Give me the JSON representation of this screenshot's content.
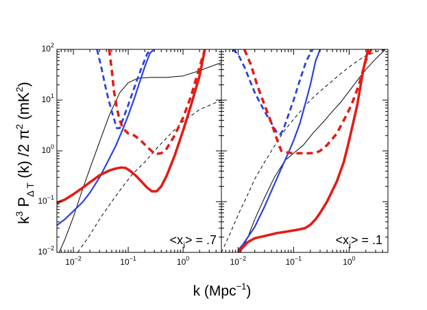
{
  "figure": {
    "ylabel": {
      "base": "k",
      "sup1": "3",
      "mid": " P",
      "sub1": "Δ T",
      "mid2": " (k) /2 π",
      "sup2": "2",
      "unit": "  (mK",
      "sup3": "2",
      "close": ")"
    },
    "xlabel": {
      "base": "k (Mpc",
      "sup": "−1",
      "close": ")"
    }
  },
  "chart_data": [
    {
      "type": "line",
      "panel": "left",
      "annotation": {
        "pre": "<x",
        "sub": "i",
        "post": "> = .7"
      },
      "xscale": "log",
      "yscale": "log",
      "xlim": [
        0.005,
        5
      ],
      "ylim": [
        0.01,
        100
      ],
      "xticks": [
        {
          "base": "10",
          "exp": "−2",
          "v": 0.01
        },
        {
          "base": "10",
          "exp": "−1",
          "v": 0.1
        },
        {
          "base": "10",
          "exp": "0",
          "v": 1
        }
      ],
      "yticks": [
        {
          "base": "10",
          "exp": "−2",
          "v": 0.01
        },
        {
          "base": "10",
          "exp": "−1",
          "v": 0.1
        },
        {
          "base": "10",
          "exp": "0",
          "v": 1
        },
        {
          "base": "10",
          "exp": "1",
          "v": 10
        },
        {
          "base": "10",
          "exp": "2",
          "v": 100
        }
      ],
      "series": [
        {
          "name": "signal-thin-solid",
          "color": "#000000",
          "width": 1,
          "dash": "",
          "x": [
            0.005,
            0.007,
            0.01,
            0.014,
            0.02,
            0.03,
            0.045,
            0.07,
            0.1,
            0.15,
            0.25,
            0.5,
            1,
            2,
            5
          ],
          "y": [
            0.008,
            0.018,
            0.05,
            0.15,
            0.45,
            1.5,
            5,
            14,
            22,
            27,
            28,
            28,
            30,
            38,
            55
          ]
        },
        {
          "name": "signal-thin-dashed",
          "color": "#000000",
          "width": 1,
          "dash": "5,4",
          "x": [
            0.012,
            0.02,
            0.03,
            0.05,
            0.08,
            0.12,
            0.2,
            0.35,
            0.6,
            1,
            2,
            5
          ],
          "y": [
            0.01,
            0.022,
            0.045,
            0.1,
            0.2,
            0.35,
            0.6,
            1.2,
            2.2,
            3.8,
            6.5,
            10
          ]
        },
        {
          "name": "blue-solid",
          "color": "#2a3fe0",
          "width": 2.2,
          "dash": "",
          "x": [
            0.005,
            0.007,
            0.01,
            0.015,
            0.02,
            0.03,
            0.045,
            0.06,
            0.08,
            0.1,
            0.13,
            0.16,
            0.2,
            0.25,
            0.3
          ],
          "y": [
            0.034,
            0.045,
            0.065,
            0.1,
            0.15,
            0.3,
            0.7,
            1.3,
            2.7,
            5,
            11,
            22,
            45,
            85,
            100
          ]
        },
        {
          "name": "blue-dashed",
          "color": "#2a3fe0",
          "width": 2.8,
          "dash": "8,5",
          "x": [
            0.027,
            0.033,
            0.04,
            0.05,
            0.062,
            0.07,
            0.085,
            0.1,
            0.13,
            0.17,
            0.22,
            0.25
          ],
          "y": [
            100,
            40,
            15,
            6,
            2.8,
            2.8,
            5,
            8,
            18,
            40,
            80,
            100
          ]
        },
        {
          "name": "red-solid",
          "color": "#e51a14",
          "width": 3.6,
          "dash": "",
          "x": [
            0.005,
            0.007,
            0.01,
            0.015,
            0.02,
            0.03,
            0.045,
            0.06,
            0.075,
            0.09,
            0.11,
            0.14,
            0.18,
            0.22,
            0.27,
            0.33,
            0.4,
            0.5,
            0.7,
            1,
            1.4,
            2,
            2.5
          ],
          "y": [
            0.095,
            0.11,
            0.14,
            0.19,
            0.24,
            0.33,
            0.41,
            0.45,
            0.47,
            0.46,
            0.4,
            0.32,
            0.24,
            0.19,
            0.16,
            0.16,
            0.2,
            0.32,
            0.8,
            2.5,
            8,
            30,
            100
          ]
        },
        {
          "name": "red-dashed",
          "color": "#e51a14",
          "width": 3.6,
          "dash": "9,6",
          "x": [
            0.045,
            0.05,
            0.055,
            0.062,
            0.07,
            0.08,
            0.1,
            0.13,
            0.17,
            0.22,
            0.28,
            0.34,
            0.4,
            0.5,
            0.7,
            1,
            1.4,
            2,
            2.5
          ],
          "y": [
            100,
            40,
            15,
            7,
            4,
            2.8,
            2.2,
            2,
            1.6,
            1.2,
            0.95,
            0.88,
            0.9,
            1.1,
            2,
            4.5,
            12,
            45,
            100
          ]
        }
      ]
    },
    {
      "type": "line",
      "panel": "right",
      "annotation": {
        "pre": "<x",
        "sub": "i",
        "post": "> = .1"
      },
      "xscale": "log",
      "yscale": "log",
      "xlim": [
        0.005,
        5
      ],
      "ylim": [
        0.01,
        100
      ],
      "xticks": [
        {
          "base": "10",
          "exp": "−2",
          "v": 0.01
        },
        {
          "base": "10",
          "exp": "−1",
          "v": 0.1
        },
        {
          "base": "10",
          "exp": "0",
          "v": 1
        }
      ],
      "yticks": [],
      "series": [
        {
          "name": "signal-thin-solid",
          "color": "#000000",
          "width": 1,
          "dash": "",
          "x": [
            0.01,
            0.015,
            0.02,
            0.03,
            0.045,
            0.07,
            0.1,
            0.15,
            0.22,
            0.35,
            0.5,
            0.7,
            1,
            1.5,
            2,
            3,
            4.5
          ],
          "y": [
            0.008,
            0.02,
            0.045,
            0.12,
            0.3,
            0.65,
            0.9,
            1.3,
            2.2,
            3.8,
            6,
            9,
            15,
            27,
            40,
            65,
            100
          ]
        },
        {
          "name": "signal-thin-dashed",
          "color": "#000000",
          "width": 1,
          "dash": "5,4",
          "x": [
            0.005,
            0.007,
            0.01,
            0.015,
            0.02,
            0.03,
            0.05,
            0.07,
            0.1,
            0.15,
            0.2,
            0.3,
            0.5,
            0.7,
            1,
            1.5,
            2,
            3.5,
            5
          ],
          "y": [
            0.01,
            0.022,
            0.055,
            0.14,
            0.28,
            0.6,
            1.5,
            2.6,
            4.2,
            7,
            10,
            15,
            24,
            33,
            45,
            62,
            75,
            95,
            100
          ]
        },
        {
          "name": "blue-solid",
          "color": "#2a3fe0",
          "width": 2.2,
          "dash": "",
          "x": [
            0.01,
            0.012,
            0.015,
            0.02,
            0.03,
            0.045,
            0.06,
            0.08,
            0.1,
            0.13,
            0.16,
            0.2,
            0.25,
            0.3
          ],
          "y": [
            0.011,
            0.014,
            0.02,
            0.032,
            0.08,
            0.22,
            0.45,
            0.9,
            1.6,
            3.5,
            8,
            20,
            60,
            100
          ]
        },
        {
          "name": "blue-dashed",
          "color": "#2a3fe0",
          "width": 2.8,
          "dash": "8,5",
          "x": [
            0.008,
            0.01,
            0.013,
            0.02,
            0.03,
            0.04,
            0.05,
            0.057,
            0.065,
            0.08,
            0.1,
            0.13,
            0.17,
            0.22
          ],
          "y": [
            100,
            80,
            45,
            14,
            6,
            3.5,
            2.3,
            2.1,
            2.6,
            5,
            10,
            25,
            60,
            100
          ]
        },
        {
          "name": "red-solid",
          "color": "#e51a14",
          "width": 3.6,
          "dash": "",
          "x": [
            0.01,
            0.015,
            0.02,
            0.03,
            0.05,
            0.08,
            0.12,
            0.16,
            0.2,
            0.25,
            0.3,
            0.4,
            0.6,
            0.8,
            1,
            1.4,
            1.8,
            2.2
          ],
          "y": [
            0.01,
            0.016,
            0.019,
            0.021,
            0.024,
            0.026,
            0.028,
            0.03,
            0.035,
            0.045,
            0.06,
            0.1,
            0.25,
            0.6,
            1.6,
            8,
            40,
            100
          ]
        },
        {
          "name": "red-dashed",
          "color": "#e51a14",
          "width": 3.6,
          "dash": "9,6",
          "x": [
            0.013,
            0.017,
            0.022,
            0.03,
            0.04,
            0.05,
            0.06,
            0.08,
            0.1,
            0.15,
            0.2,
            0.25,
            0.3,
            0.4,
            0.6,
            0.8,
            1.1,
            1.5,
            2,
            2.5
          ],
          "y": [
            100,
            50,
            20,
            8,
            3.5,
            1.7,
            1,
            0.92,
            0.9,
            0.9,
            0.9,
            0.92,
            1,
            1.3,
            2.2,
            4,
            8,
            20,
            60,
            100
          ]
        }
      ]
    }
  ]
}
